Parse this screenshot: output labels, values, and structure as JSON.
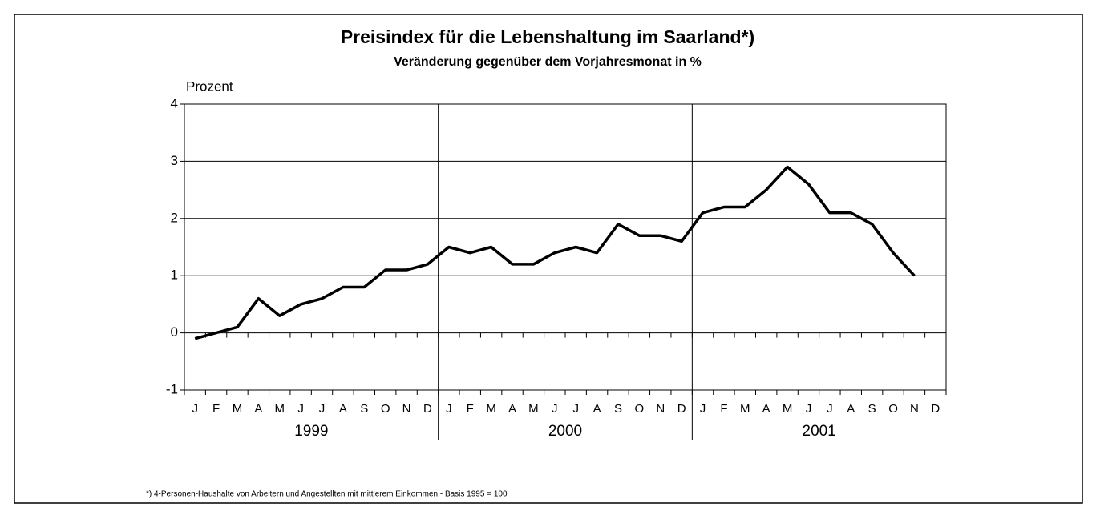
{
  "chart_data": {
    "type": "line",
    "title": "Preisindex für die Lebenshaltung im Saarland*)",
    "subtitle": "Veränderung gegenüber dem Vorjahresmonat in %",
    "y_label": "Prozent",
    "footnote": "*) 4-Personen-Haushalte von Arbeitern und Angestellten mit mittlerem Einkommen  -  Basis 1995 = 100",
    "categories": [
      "J",
      "F",
      "M",
      "A",
      "M",
      "J",
      "J",
      "A",
      "S",
      "O",
      "N",
      "D",
      "J",
      "F",
      "M",
      "A",
      "M",
      "J",
      "J",
      "A",
      "S",
      "O",
      "N",
      "D",
      "J",
      "F",
      "M",
      "A",
      "M",
      "J",
      "J",
      "A",
      "S",
      "O",
      "N",
      "D"
    ],
    "groups": [
      "1999",
      "2000",
      "2001"
    ],
    "values": [
      -0.1,
      0.0,
      0.1,
      0.6,
      0.3,
      0.5,
      0.6,
      0.8,
      0.8,
      1.1,
      1.1,
      1.2,
      1.5,
      1.4,
      1.5,
      1.2,
      1.2,
      1.4,
      1.5,
      1.4,
      1.9,
      1.7,
      1.7,
      1.6,
      2.1,
      2.2,
      2.2,
      2.5,
      2.9,
      2.6,
      2.1,
      2.1,
      1.9,
      1.4,
      1.0,
      null
    ],
    "color": "#000000",
    "ylim": [
      -1,
      4
    ],
    "yticks": [
      -1,
      0,
      1,
      2,
      3,
      4
    ],
    "grid": true
  }
}
